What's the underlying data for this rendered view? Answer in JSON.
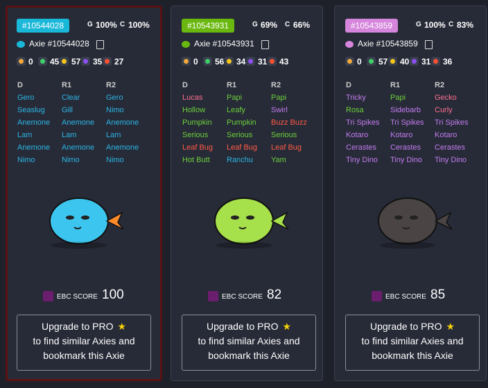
{
  "cards": [
    {
      "id": "#10544028",
      "tag_color": "#1ab8d8",
      "selected": true,
      "g_label": "G",
      "g_value": "100%",
      "c_label": "C",
      "c_value": "100%",
      "name": "Axie #10544028",
      "stats": [
        0,
        45,
        57,
        35,
        27
      ],
      "gene_headers": [
        "D",
        "R1",
        "R2"
      ],
      "genes": [
        [
          {
            "name": "Gero",
            "color": "#2bb5e6"
          },
          {
            "name": "Clear",
            "color": "#2bb5e6"
          },
          {
            "name": "Gero",
            "color": "#2bb5e6"
          }
        ],
        [
          {
            "name": "Seaslug",
            "color": "#2bb5e6"
          },
          {
            "name": "Gill",
            "color": "#2bb5e6"
          },
          {
            "name": "Nimo",
            "color": "#2bb5e6"
          }
        ],
        [
          {
            "name": "Anemone",
            "color": "#2bb5e6"
          },
          {
            "name": "Anemone",
            "color": "#2bb5e6"
          },
          {
            "name": "Anemone",
            "color": "#2bb5e6"
          }
        ],
        [
          {
            "name": "Lam",
            "color": "#2bb5e6"
          },
          {
            "name": "Lam",
            "color": "#2bb5e6"
          },
          {
            "name": "Lam",
            "color": "#2bb5e6"
          }
        ],
        [
          {
            "name": "Anemone",
            "color": "#2bb5e6"
          },
          {
            "name": "Anemone",
            "color": "#2bb5e6"
          },
          {
            "name": "Anemone",
            "color": "#2bb5e6"
          }
        ],
        [
          {
            "name": "Nimo",
            "color": "#2bb5e6"
          },
          {
            "name": "Nimo",
            "color": "#2bb5e6"
          },
          {
            "name": "Nimo",
            "color": "#2bb5e6"
          }
        ]
      ],
      "score_label": "EBC SCORE",
      "score": 100,
      "upgrade": [
        "Upgrade to PRO",
        "to find similar Axies and",
        "bookmark this Axie"
      ]
    },
    {
      "id": "#10543931",
      "tag_color": "#6ab80f",
      "selected": false,
      "g_label": "G",
      "g_value": "69%",
      "c_label": "C",
      "c_value": "66%",
      "name": "Axie #10543931",
      "stats": [
        0,
        56,
        34,
        31,
        43
      ],
      "gene_headers": [
        "D",
        "R1",
        "R2"
      ],
      "genes": [
        [
          {
            "name": "Lucas",
            "color": "#ff6f91"
          },
          {
            "name": "Papi",
            "color": "#6ccf3b"
          },
          {
            "name": "Papi",
            "color": "#6ccf3b"
          }
        ],
        [
          {
            "name": "Hollow",
            "color": "#6ccf3b"
          },
          {
            "name": "Leafy",
            "color": "#6ccf3b"
          },
          {
            "name": "Swirl",
            "color": "#c37cf0"
          }
        ],
        [
          {
            "name": "Pumpkin",
            "color": "#6ccf3b"
          },
          {
            "name": "Pumpkin",
            "color": "#6ccf3b"
          },
          {
            "name": "Buzz Buzz",
            "color": "#ff5a45"
          }
        ],
        [
          {
            "name": "Serious",
            "color": "#6ccf3b"
          },
          {
            "name": "Serious",
            "color": "#6ccf3b"
          },
          {
            "name": "Serious",
            "color": "#6ccf3b"
          }
        ],
        [
          {
            "name": "Leaf Bug",
            "color": "#ff5a45"
          },
          {
            "name": "Leaf Bug",
            "color": "#ff5a45"
          },
          {
            "name": "Leaf Bug",
            "color": "#ff5a45"
          }
        ],
        [
          {
            "name": "Hot Butt",
            "color": "#6ccf3b"
          },
          {
            "name": "Ranchu",
            "color": "#2bb5e6"
          },
          {
            "name": "Yam",
            "color": "#6ccf3b"
          }
        ]
      ],
      "score_label": "EBC SCORE",
      "score": 82,
      "upgrade": [
        "Upgrade to PRO",
        "to find similar Axies and",
        "bookmark this Axie"
      ]
    },
    {
      "id": "#10543859",
      "tag_color": "#d585dc",
      "selected": false,
      "g_label": "G",
      "g_value": "100%",
      "c_label": "C",
      "c_value": "83%",
      "name": "Axie #10543859",
      "stats": [
        0,
        57,
        40,
        31,
        36
      ],
      "gene_headers": [
        "D",
        "R1",
        "R2"
      ],
      "genes": [
        [
          {
            "name": "Tricky",
            "color": "#c37cf0"
          },
          {
            "name": "Papi",
            "color": "#6ccf3b"
          },
          {
            "name": "Gecko",
            "color": "#ff6f91"
          }
        ],
        [
          {
            "name": "Rosa",
            "color": "#6ccf3b"
          },
          {
            "name": "Sidebarb",
            "color": "#c37cf0"
          },
          {
            "name": "Curly",
            "color": "#ff6f91"
          }
        ],
        [
          {
            "name": "Tri Spikes",
            "color": "#c37cf0"
          },
          {
            "name": "Tri Spikes",
            "color": "#c37cf0"
          },
          {
            "name": "Tri Spikes",
            "color": "#c37cf0"
          }
        ],
        [
          {
            "name": "Kotaro",
            "color": "#c37cf0"
          },
          {
            "name": "Kotaro",
            "color": "#c37cf0"
          },
          {
            "name": "Kotaro",
            "color": "#c37cf0"
          }
        ],
        [
          {
            "name": "Cerastes",
            "color": "#c37cf0"
          },
          {
            "name": "Cerastes",
            "color": "#c37cf0"
          },
          {
            "name": "Cerastes",
            "color": "#c37cf0"
          }
        ],
        [
          {
            "name": "Tiny Dino",
            "color": "#c37cf0"
          },
          {
            "name": "Tiny Dino",
            "color": "#c37cf0"
          },
          {
            "name": "Tiny Dino",
            "color": "#c37cf0"
          }
        ]
      ],
      "score_label": "EBC SCORE",
      "score": 85,
      "upgrade": [
        "Upgrade to PRO",
        "to find similar Axies and",
        "bookmark this Axie"
      ]
    }
  ]
}
